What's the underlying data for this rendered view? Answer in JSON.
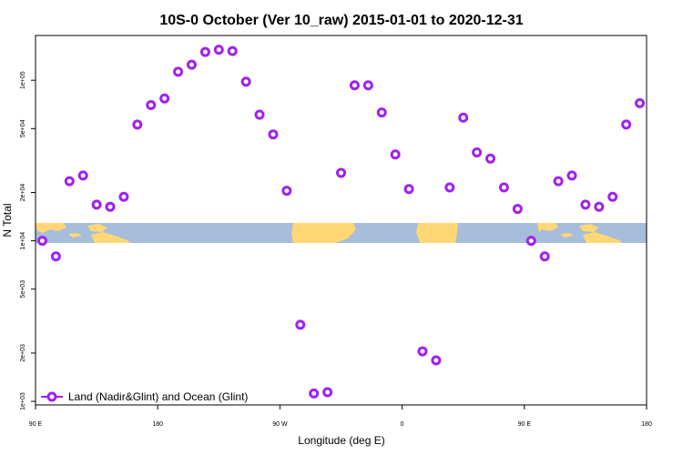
{
  "chart_data": {
    "type": "scatter",
    "title": "10S-0 October (Ver 10_raw)   2015-01-01 to 2020-12-31",
    "xlabel": "Longitude (deg E)",
    "ylabel": "N Total",
    "y_scale": "log",
    "xlim": [
      90,
      540
    ],
    "ylim": [
      950,
      190000
    ],
    "x_ticks": [
      {
        "value": 90,
        "label": "90 E"
      },
      {
        "value": 180,
        "label": "180"
      },
      {
        "value": 270,
        "label": "90 W"
      },
      {
        "value": 360,
        "label": "0"
      },
      {
        "value": 450,
        "label": "90 E"
      },
      {
        "value": 540,
        "label": "180"
      }
    ],
    "y_ticks": [
      {
        "value": 1000,
        "label": "1e+03"
      },
      {
        "value": 2000,
        "label": "2e+03"
      },
      {
        "value": 5000,
        "label": "5e+03"
      },
      {
        "value": 10000,
        "label": "1e+04"
      },
      {
        "value": 20000,
        "label": "2e+04"
      },
      {
        "value": 50000,
        "label": "5e+04"
      },
      {
        "value": 100000,
        "label": "1e+05"
      }
    ],
    "series": [
      {
        "name": "Land (Nadir&Glint) and Ocean (Glint)",
        "color": "#a020f0",
        "x": [
          95,
          105,
          115,
          125,
          135,
          145,
          155,
          165,
          175,
          185,
          195,
          205,
          215,
          225,
          235,
          245,
          255,
          265,
          275,
          285,
          295,
          305,
          315,
          325,
          335,
          345,
          355,
          365,
          375,
          385,
          395,
          405,
          415,
          425,
          435,
          445,
          455,
          465,
          475,
          485,
          495,
          505,
          515,
          525,
          535
        ],
        "values": [
          10000,
          8000,
          23500,
          25500,
          16800,
          16300,
          18800,
          53000,
          70000,
          77000,
          113000,
          125000,
          150000,
          155000,
          152000,
          98000,
          61000,
          46000,
          20500,
          3000,
          1120,
          1140,
          26500,
          93000,
          93000,
          63000,
          34500,
          21000,
          2050,
          1800,
          21500,
          58500,
          35500,
          32500,
          21500,
          15800,
          10000,
          8000,
          23500,
          25500,
          16800,
          16300,
          18800,
          53000,
          72000
        ]
      }
    ],
    "legend": {
      "position": "bottom-left",
      "entries": [
        "Land (Nadir&Glint) and Ocean (Glint)"
      ]
    },
    "colors": {
      "points": "#a020f0",
      "ocean_band": "#a6bddb",
      "land": "#ffd875"
    }
  }
}
